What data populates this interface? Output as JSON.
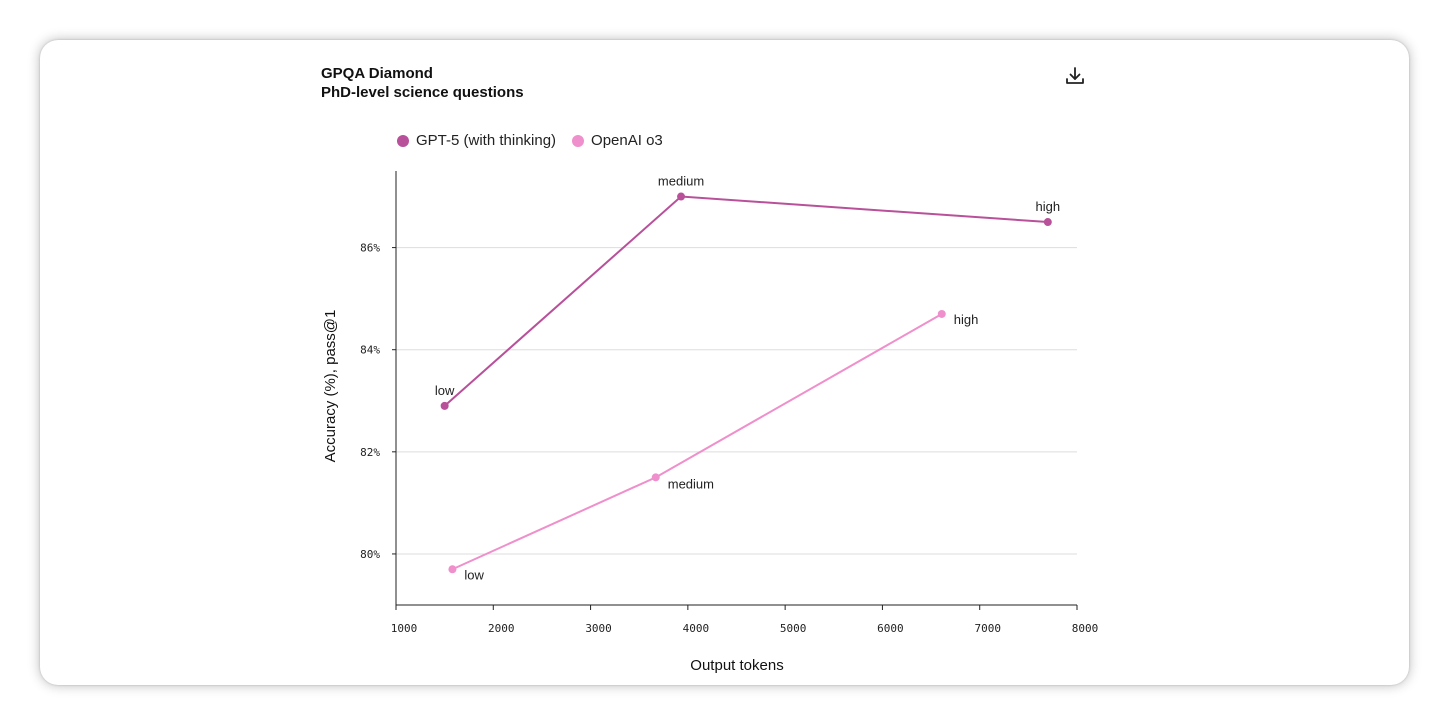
{
  "header": {
    "title": "GPQA Diamond",
    "subtitle": "PhD-level science questions",
    "download_icon": "download-icon"
  },
  "colors": {
    "gpt5": "#b8509a",
    "o3": "#ef8fcb",
    "grid": "#dddddd",
    "axis": "#222222"
  },
  "chart_data": {
    "type": "line",
    "title": "GPQA Diamond",
    "subtitle": "PhD-level science questions",
    "xlabel": "Output tokens",
    "ylabel": "Accuracy (%), pass@1",
    "xlim": [
      1000,
      8000
    ],
    "ylim": [
      79,
      87.5
    ],
    "xticks": [
      1000,
      2000,
      3000,
      4000,
      5000,
      6000,
      7000,
      8000
    ],
    "xtick_labels": [
      "1000",
      "2000",
      "3000",
      "4000",
      "5000",
      "6000",
      "7000",
      "8000"
    ],
    "yticks": [
      80,
      82,
      84,
      86
    ],
    "ytick_labels": [
      "80%",
      "82%",
      "84%",
      "86%"
    ],
    "grid": "horizontal",
    "legend_position": "top-left",
    "series": [
      {
        "name": "GPT-5 (with thinking)",
        "color": "#b8509a",
        "points": [
          {
            "x": 1500,
            "y": 82.9,
            "label": "low"
          },
          {
            "x": 3930,
            "y": 87.0,
            "label": "medium"
          },
          {
            "x": 7700,
            "y": 86.5,
            "label": "high"
          }
        ]
      },
      {
        "name": "OpenAI o3",
        "color": "#ef8fcb",
        "points": [
          {
            "x": 1580,
            "y": 79.7,
            "label": "low"
          },
          {
            "x": 3670,
            "y": 81.5,
            "label": "medium"
          },
          {
            "x": 6610,
            "y": 84.7,
            "label": "high"
          }
        ]
      }
    ]
  }
}
